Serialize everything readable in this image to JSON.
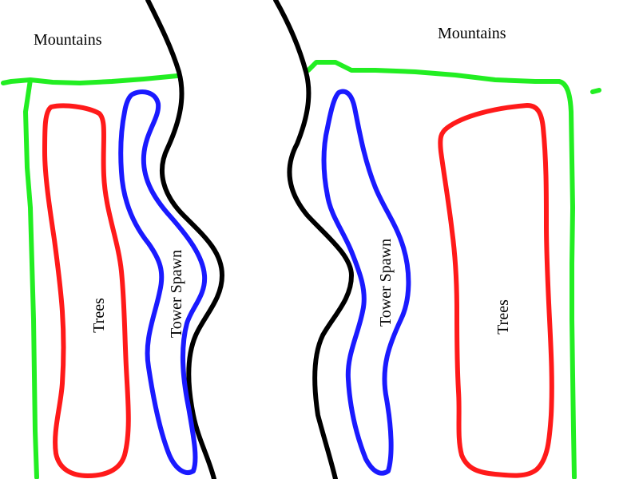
{
  "labels": {
    "mountains_left": "Mountains",
    "mountains_right": "Mountains",
    "trees_left": "Trees",
    "trees_right": "Trees",
    "tower_spawn_left": "Tower Spawn",
    "tower_spawn_right": "Tower Spawn"
  },
  "colors": {
    "mountains": "#22ee22",
    "trees": "#ff1a1a",
    "tower_spawn": "#1a1aff",
    "path_edge": "#000000",
    "background": "#ffffff"
  }
}
